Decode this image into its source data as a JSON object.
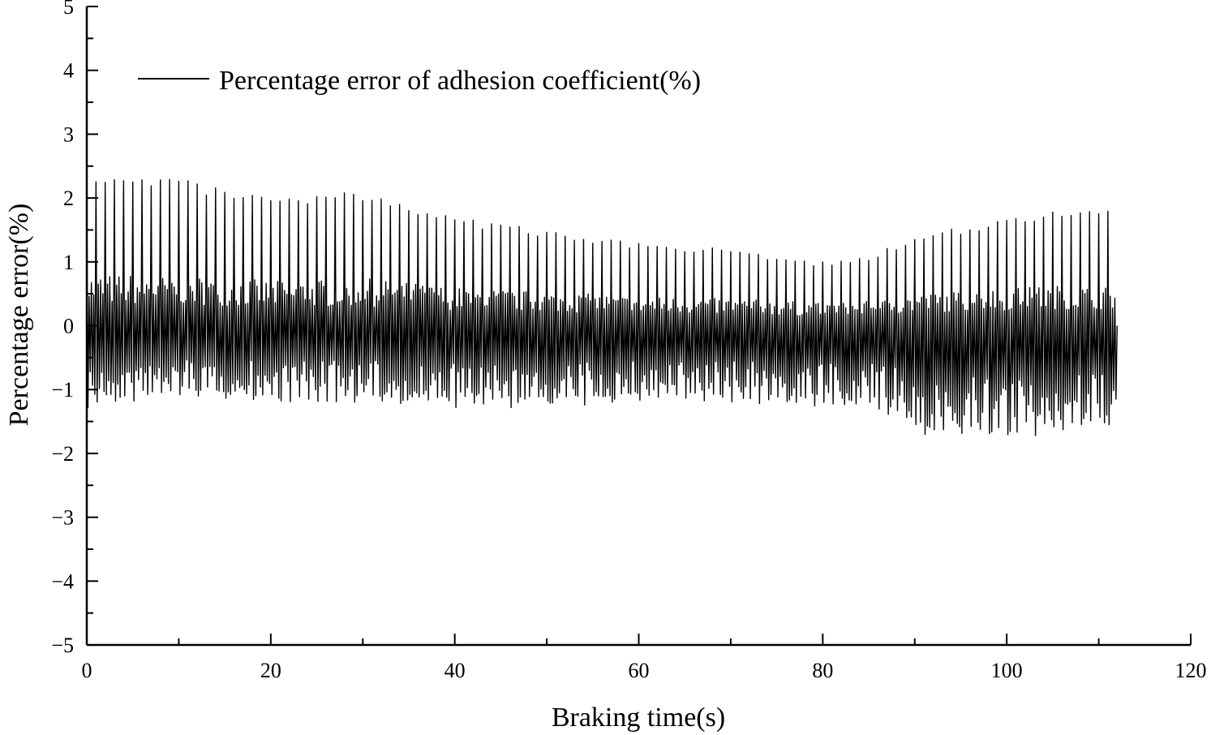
{
  "chart_data": {
    "type": "line",
    "title": "",
    "xlabel": "Braking time(s)",
    "ylabel": "Percentage error(%)",
    "xlim": [
      0,
      120
    ],
    "ylim": [
      -5,
      5
    ],
    "x_ticks": [
      0,
      20,
      40,
      60,
      80,
      100,
      120
    ],
    "x_tick_labels": [
      "0",
      "20",
      "40",
      "60",
      "80",
      "100",
      "120"
    ],
    "y_ticks": [
      -5,
      -4,
      -3,
      -2,
      -1,
      0,
      1,
      2,
      3,
      4,
      5
    ],
    "y_tick_labels": [
      "−5",
      "−4",
      "−3",
      "−2",
      "−1",
      "0",
      "1",
      "2",
      "3",
      "4",
      "5"
    ],
    "grid": false,
    "legend_position": "top-left",
    "line_color": "#000000",
    "series": [
      {
        "name": "Percentage error of adhesion coefficient(%)",
        "cycle_period_s": 1.0,
        "x_end": 112,
        "envelope": {
          "x": [
            0,
            10,
            20,
            30,
            40,
            50,
            60,
            70,
            80,
            85,
            90,
            100,
            105,
            112
          ],
          "upper": [
            2.3,
            2.3,
            2.0,
            2.1,
            1.7,
            1.5,
            1.3,
            1.2,
            1.0,
            1.1,
            1.4,
            1.7,
            1.8,
            1.8
          ],
          "lower": [
            -1.3,
            -1.1,
            -1.2,
            -1.2,
            -1.3,
            -1.3,
            -1.2,
            -1.2,
            -1.3,
            -1.3,
            -1.7,
            -1.8,
            -1.7,
            -1.6
          ]
        }
      }
    ]
  }
}
